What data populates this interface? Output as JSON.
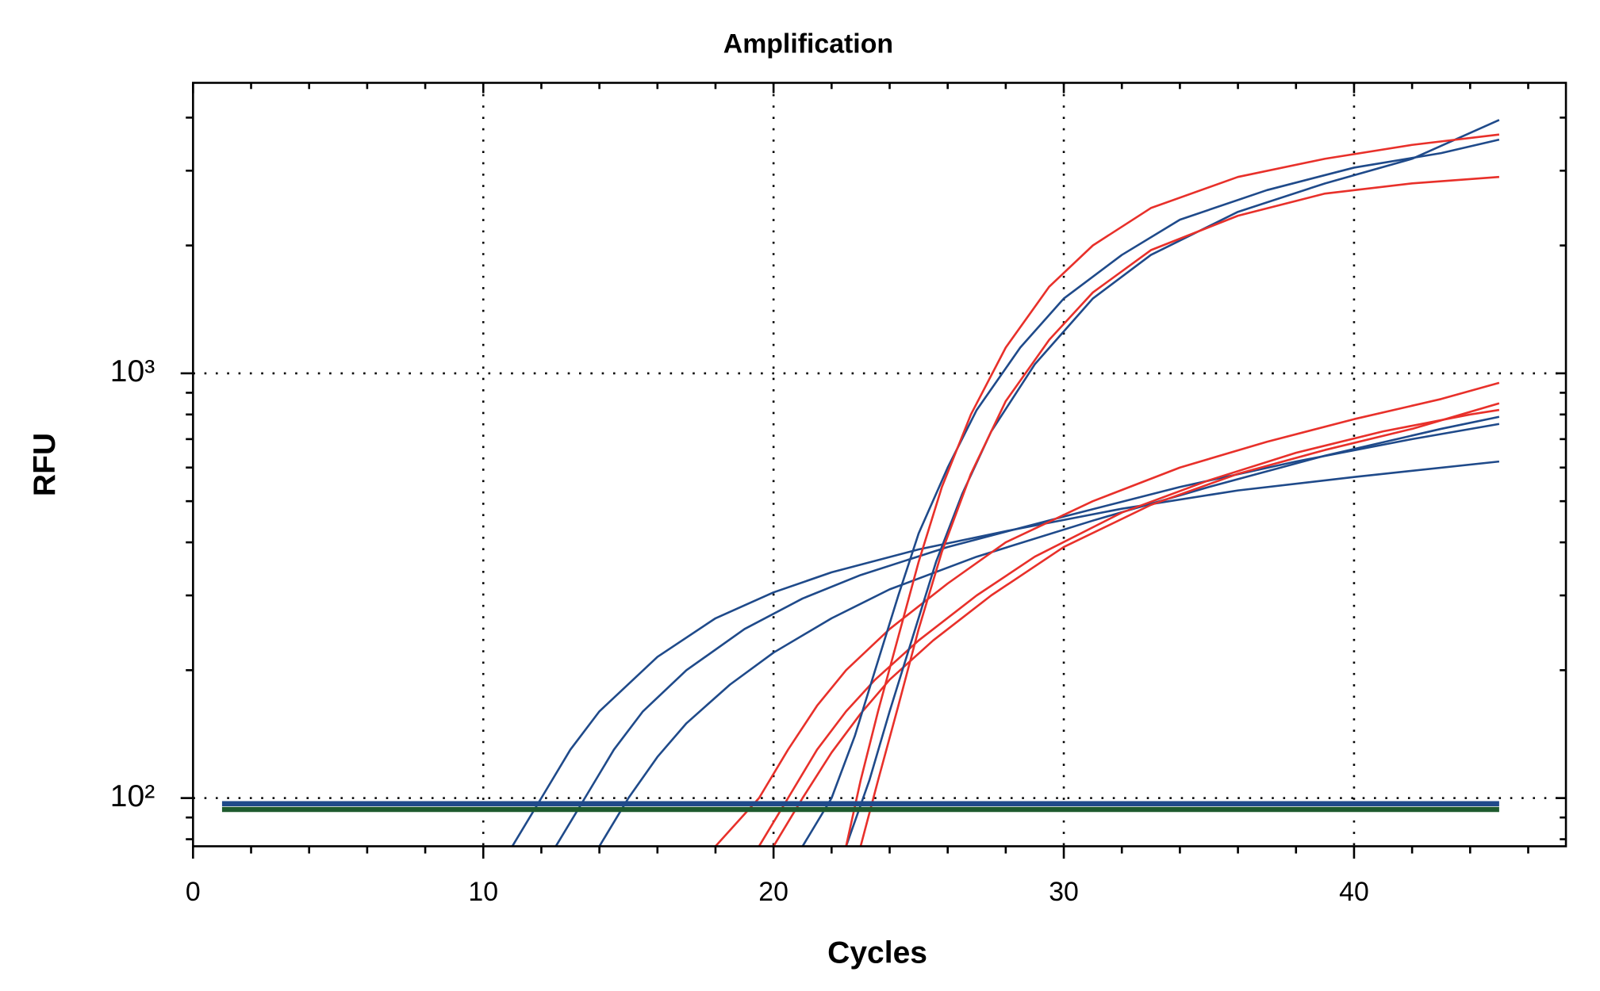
{
  "chart_data": {
    "type": "line",
    "title": "Amplification",
    "xlabel": "Cycles",
    "ylabel": "RFU",
    "xlim": [
      0,
      47.3
    ],
    "ylim": [
      77,
      4830
    ],
    "log_y": true,
    "grid": true,
    "xticks": [
      0,
      10,
      20,
      30,
      40
    ],
    "xticks_minor": [
      2,
      4,
      6,
      8,
      12,
      14,
      16,
      18,
      22,
      24,
      26,
      28,
      32,
      34,
      36,
      38,
      42,
      44,
      46
    ],
    "yticks": [
      {
        "value": 100,
        "label": "10²"
      },
      {
        "value": 1000,
        "label": "10³"
      }
    ],
    "yticks_minor": [
      80,
      90,
      200,
      300,
      400,
      500,
      600,
      700,
      800,
      900,
      2000,
      3000,
      4000
    ],
    "threshold_x": [
      1,
      45
    ],
    "thresholds": [
      {
        "value": 97,
        "color": "#1f4a8a"
      },
      {
        "value": 94,
        "color": "#1e5a2e"
      }
    ],
    "series": [
      {
        "color": "#1f4a8a",
        "x": [
          11,
          12,
          13,
          14,
          16,
          18,
          20,
          22,
          25,
          28,
          32,
          36,
          40,
          45
        ],
        "values": [
          77,
          100,
          130,
          160,
          215,
          265,
          305,
          340,
          385,
          425,
          480,
          530,
          570,
          620
        ]
      },
      {
        "color": "#1f4a8a",
        "x": [
          12.5,
          13.5,
          14.5,
          15.5,
          17,
          19,
          21,
          23,
          26,
          30,
          34,
          38,
          42,
          45
        ],
        "values": [
          77,
          100,
          130,
          160,
          200,
          250,
          295,
          335,
          390,
          460,
          540,
          620,
          700,
          760
        ]
      },
      {
        "color": "#1f4a8a",
        "x": [
          14,
          15,
          16,
          17,
          18.5,
          20,
          22,
          24,
          27,
          31,
          35,
          39,
          43,
          45
        ],
        "values": [
          77,
          100,
          125,
          150,
          185,
          220,
          265,
          310,
          370,
          450,
          540,
          640,
          740,
          790
        ]
      },
      {
        "color": "#e8302a",
        "x": [
          18,
          19.5,
          20.5,
          21.5,
          22.5,
          24,
          26,
          28,
          31,
          34,
          37,
          40,
          43,
          45
        ],
        "values": [
          77,
          100,
          130,
          165,
          200,
          250,
          320,
          400,
          500,
          600,
          690,
          780,
          870,
          950
        ]
      },
      {
        "color": "#e8302a",
        "x": [
          19.5,
          20.5,
          21.5,
          22.5,
          23.5,
          25,
          27,
          29,
          32,
          35,
          38,
          41,
          44,
          45
        ],
        "values": [
          77,
          100,
          130,
          160,
          190,
          235,
          300,
          370,
          470,
          560,
          650,
          730,
          800,
          820
        ]
      },
      {
        "color": "#e8302a",
        "x": [
          20,
          21,
          22,
          23,
          24,
          25.5,
          27.5,
          30,
          33,
          36,
          39,
          42,
          45
        ],
        "values": [
          77,
          100,
          128,
          158,
          190,
          235,
          300,
          390,
          490,
          580,
          660,
          740,
          850
        ]
      },
      {
        "color": "#1f4a8a",
        "x": [
          21,
          22,
          22.8,
          23.5,
          24.3,
          25,
          26,
          27,
          28.5,
          30,
          32,
          34,
          37,
          40,
          43,
          45
        ],
        "values": [
          77,
          100,
          140,
          200,
          300,
          420,
          600,
          820,
          1150,
          1500,
          1900,
          2300,
          2700,
          3050,
          3300,
          3550
        ]
      },
      {
        "color": "#1f4a8a",
        "x": [
          22.5,
          23.3,
          24,
          24.8,
          25.6,
          26.5,
          27.5,
          29,
          31,
          33,
          36,
          39,
          42,
          45
        ],
        "values": [
          77,
          110,
          160,
          240,
          360,
          520,
          730,
          1050,
          1500,
          1900,
          2400,
          2800,
          3200,
          3950
        ]
      },
      {
        "color": "#e8302a",
        "x": [
          22.5,
          23,
          23.6,
          24.3,
          25,
          25.8,
          26.8,
          28,
          29.5,
          31,
          33,
          36,
          39,
          42,
          45
        ],
        "values": [
          77,
          110,
          160,
          240,
          360,
          540,
          800,
          1150,
          1600,
          2000,
          2450,
          2900,
          3200,
          3450,
          3650
        ]
      },
      {
        "color": "#e8302a",
        "x": [
          23,
          23.6,
          24.3,
          25,
          25.8,
          26.8,
          28,
          29.5,
          31,
          33,
          36,
          39,
          42,
          45
        ],
        "values": [
          77,
          110,
          165,
          250,
          380,
          580,
          860,
          1200,
          1550,
          1950,
          2350,
          2650,
          2800,
          2900
        ]
      }
    ]
  }
}
